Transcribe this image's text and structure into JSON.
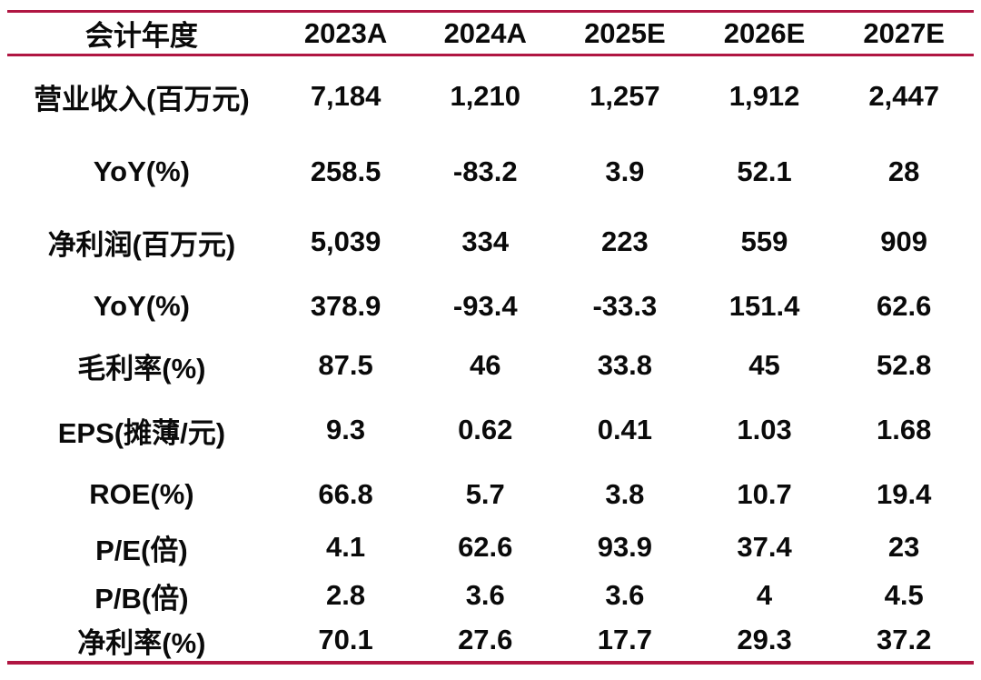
{
  "colors": {
    "accent_rule": "#B01642",
    "text": "#0A0A0A",
    "background": "#FFFFFF"
  },
  "chart_data": {
    "type": "table",
    "title": "",
    "columns": [
      "会计年度",
      "2023A",
      "2024A",
      "2025E",
      "2026E",
      "2027E"
    ],
    "rows": [
      {
        "label": "营业收入(百万元)",
        "values": [
          "7,184",
          "1,210",
          "1,257",
          "1,912",
          "2,447"
        ]
      },
      {
        "label": "YoY(%)",
        "values": [
          "258.5",
          "-83.2",
          "3.9",
          "52.1",
          "28"
        ]
      },
      {
        "label": "净利润(百万元)",
        "values": [
          "5,039",
          "334",
          "223",
          "559",
          "909"
        ]
      },
      {
        "label": "YoY(%)",
        "values": [
          "378.9",
          "-93.4",
          "-33.3",
          "151.4",
          "62.6"
        ]
      },
      {
        "label": "毛利率(%)",
        "values": [
          "87.5",
          "46",
          "33.8",
          "45",
          "52.8"
        ]
      },
      {
        "label": "EPS(摊薄/元)",
        "values": [
          "9.3",
          "0.62",
          "0.41",
          "1.03",
          "1.68"
        ]
      },
      {
        "label": "ROE(%)",
        "values": [
          "66.8",
          "5.7",
          "3.8",
          "10.7",
          "19.4"
        ]
      },
      {
        "label": "P/E(倍)",
        "values": [
          "4.1",
          "62.6",
          "93.9",
          "37.4",
          "23"
        ]
      },
      {
        "label": "P/B(倍)",
        "values": [
          "2.8",
          "3.6",
          "3.6",
          "4",
          "4.5"
        ]
      },
      {
        "label": "净利率(%)",
        "values": [
          "70.1",
          "27.6",
          "17.7",
          "29.3",
          "37.2"
        ]
      }
    ]
  }
}
